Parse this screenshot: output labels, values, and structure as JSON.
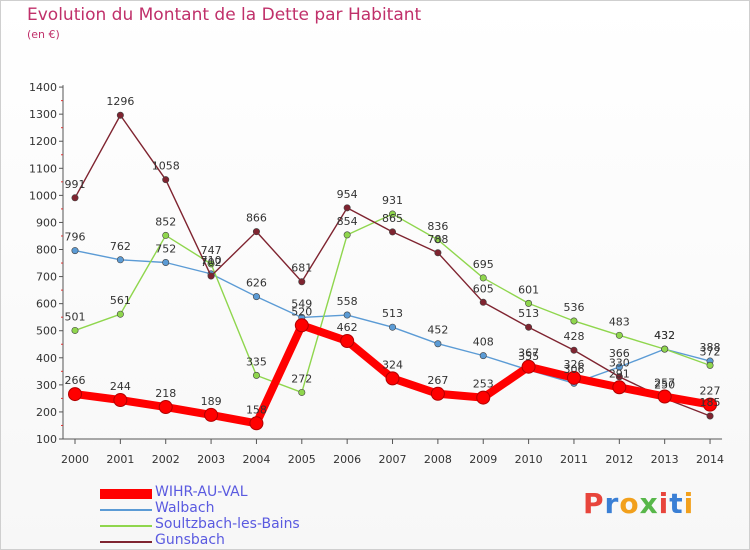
{
  "title": "Evolution du Montant de la Dette par Habitant",
  "subtitle": "(en €)",
  "logo": {
    "text": "Proxiti",
    "colors": [
      "#e8453c",
      "#3a7fd5",
      "#f2a01c",
      "#58b74a",
      "#e8453c",
      "#3a7fd5",
      "#f2a01c"
    ]
  },
  "chart_data": {
    "type": "line",
    "title": "Evolution du Montant de la Dette par Habitant",
    "subtitle": "(en €)",
    "x": [
      "2000",
      "2001",
      "2002",
      "2003",
      "2004",
      "2005",
      "2006",
      "2007",
      "2008",
      "2009",
      "2010",
      "2011",
      "2012",
      "2013",
      "2014"
    ],
    "ylim": [
      100,
      1400
    ],
    "yticks": [
      "100",
      "200",
      "300",
      "400",
      "500",
      "600",
      "700",
      "800",
      "900",
      "1000",
      "1100",
      "1200",
      "1300",
      "1400"
    ],
    "grid": false,
    "legend": "bottom-left",
    "series": [
      {
        "name": "WIHR-AU-VAL",
        "color": "#ff0000",
        "style": "thick",
        "values": [
          266,
          244,
          218,
          189,
          158,
          520,
          462,
          324,
          267,
          253,
          367,
          326,
          291,
          257,
          227
        ]
      },
      {
        "name": "Walbach",
        "color": "#5b9bd5",
        "style": "thin",
        "values": [
          796,
          762,
          752,
          710,
          626,
          549,
          558,
          513,
          452,
          408,
          355,
          306,
          366,
          432,
          388
        ]
      },
      {
        "name": "Soultzbach-les-Bains",
        "color": "#8fd64d",
        "style": "thin",
        "values": [
          501,
          561,
          852,
          747,
          335,
          272,
          854,
          931,
          836,
          695,
          601,
          536,
          483,
          432,
          372
        ]
      },
      {
        "name": "Gunsbach",
        "color": "#7f2430",
        "style": "thin",
        "values": [
          991,
          1296,
          1058,
          702,
          866,
          681,
          954,
          865,
          788,
          605,
          513,
          428,
          330,
          250,
          185
        ]
      }
    ]
  }
}
